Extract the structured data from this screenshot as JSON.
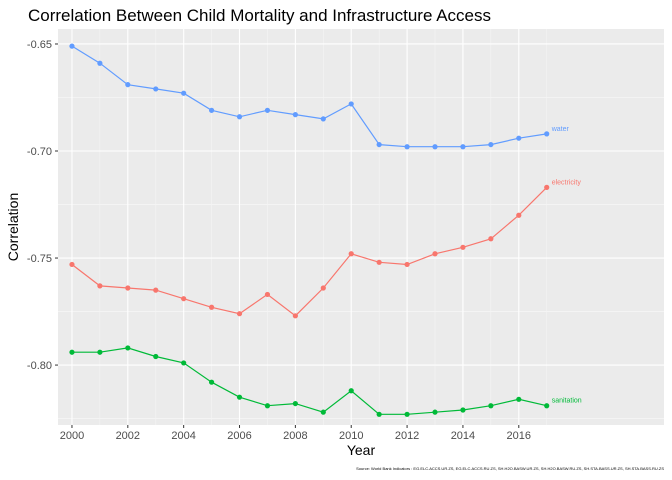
{
  "chart_data": {
    "type": "line",
    "title": "Correlation Between Child Mortality and Infrastructure Access",
    "xlabel": "Year",
    "ylabel": "Correlation",
    "x": [
      2000,
      2001,
      2002,
      2003,
      2004,
      2005,
      2006,
      2007,
      2008,
      2009,
      2010,
      2011,
      2012,
      2013,
      2014,
      2015,
      2016,
      2017
    ],
    "xlim": [
      1999.5,
      2021.2
    ],
    "ylim": [
      -0.828,
      -0.643
    ],
    "x_ticks": [
      "2000",
      "2002",
      "2004",
      "2006",
      "2008",
      "2010",
      "2012",
      "2014",
      "2016"
    ],
    "y_ticks": [
      "-0.65",
      "-0.70",
      "-0.75",
      "-0.80"
    ],
    "grid": true,
    "legend": "none (series labelled at line ends)",
    "series": [
      {
        "name": "water",
        "color": "#619CFF",
        "values": [
          -0.651,
          -0.659,
          -0.669,
          -0.671,
          -0.673,
          -0.681,
          -0.684,
          -0.681,
          -0.683,
          -0.685,
          -0.678,
          -0.697,
          -0.698,
          -0.698,
          -0.698,
          -0.697,
          -0.694,
          -0.692
        ]
      },
      {
        "name": "electricity",
        "color": "#F8766D",
        "values": [
          -0.753,
          -0.763,
          -0.764,
          -0.765,
          -0.769,
          -0.773,
          -0.776,
          -0.767,
          -0.777,
          -0.764,
          -0.748,
          -0.752,
          -0.753,
          -0.748,
          -0.745,
          -0.741,
          -0.73,
          -0.717
        ]
      },
      {
        "name": "sanitation",
        "color": "#00BA38",
        "values": [
          -0.794,
          -0.794,
          -0.792,
          -0.796,
          -0.799,
          -0.808,
          -0.815,
          -0.819,
          -0.818,
          -0.822,
          -0.812,
          -0.823,
          -0.823,
          -0.822,
          -0.821,
          -0.819,
          -0.816,
          -0.819
        ]
      }
    ],
    "caption": "Source: World Bank Indicators : EG.ELC.ACCS.UR.ZS, EG.ELC.ACCS.RU.ZS, SH.H2O.BASW.UR.ZS, SH.H2O.BASW.RU.ZS, SH.STA.BASS.UR.ZS, SH.STA.BASS.RU.ZS"
  }
}
